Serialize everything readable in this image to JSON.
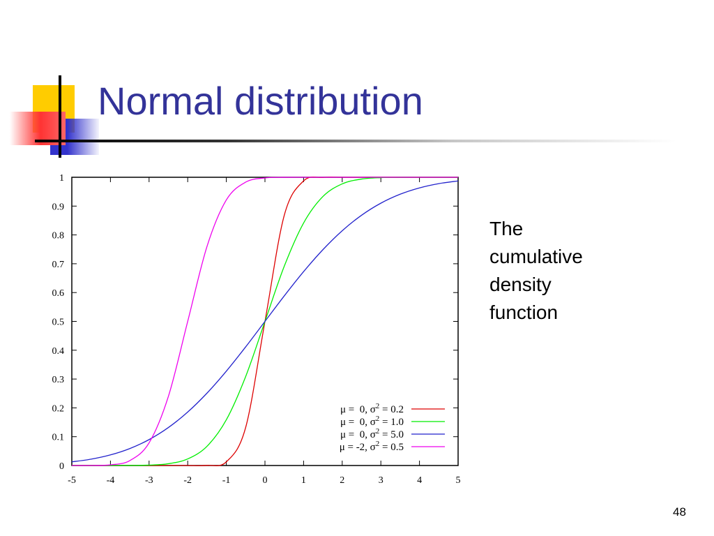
{
  "slide": {
    "title": "Normal distribution",
    "side_text": [
      "The",
      "cumulative",
      "density",
      "function"
    ],
    "page_number": "48"
  },
  "chart_data": {
    "type": "line",
    "title": "",
    "xlabel": "",
    "ylabel": "",
    "xlim": [
      -5,
      5
    ],
    "ylim": [
      0,
      1
    ],
    "x_ticks": [
      "-5",
      "-4",
      "-3",
      "-2",
      "-1",
      "0",
      "1",
      "2",
      "3",
      "4",
      "5"
    ],
    "y_ticks": [
      "0",
      "0.1",
      "0.2",
      "0.3",
      "0.4",
      "0.5",
      "0.6",
      "0.7",
      "0.8",
      "0.9",
      "1"
    ],
    "grid": false,
    "legend_position": "bottom-right",
    "x": [
      -5,
      -4.5,
      -4,
      -3.5,
      -3,
      -2.5,
      -2,
      -1.5,
      -1,
      -0.5,
      0,
      0.5,
      1,
      1.5,
      2,
      2.5,
      3,
      3.5,
      4,
      4.5,
      5
    ],
    "series": [
      {
        "name": "μ = 0, σ2 = 0.2",
        "legend_parts": {
          "mu": "0",
          "var": "0.2"
        },
        "color": "#dd0000",
        "values": [
          0,
          0,
          0,
          0,
          0,
          0,
          0,
          0.0004,
          0.0127,
          0.1318,
          0.5,
          0.8682,
          0.9873,
          0.9996,
          1,
          1,
          1,
          1,
          1,
          1,
          1
        ]
      },
      {
        "name": "μ = 0, σ2 = 1.0",
        "legend_parts": {
          "mu": "0",
          "var": "1.0"
        },
        "color": "#00ee00",
        "values": [
          0,
          0,
          0,
          0.0002,
          0.0013,
          0.0062,
          0.0228,
          0.0668,
          0.1587,
          0.3085,
          0.5,
          0.6915,
          0.8413,
          0.9332,
          0.9772,
          0.9938,
          0.9987,
          0.9998,
          1,
          1,
          1
        ]
      },
      {
        "name": "μ = 0, σ2 = 5.0",
        "legend_parts": {
          "mu": "0",
          "var": "5.0"
        },
        "color": "#2222cc",
        "values": [
          0.0127,
          0.022,
          0.0368,
          0.0588,
          0.0899,
          0.1318,
          0.1855,
          0.2512,
          0.3274,
          0.4115,
          0.5,
          0.5885,
          0.6726,
          0.7488,
          0.8145,
          0.8682,
          0.9101,
          0.9412,
          0.9632,
          0.978,
          0.9873
        ]
      },
      {
        "name": "μ = -2, σ2 = 0.5",
        "legend_parts": {
          "mu": "-2",
          "var": "0.5"
        },
        "color": "#ee00ee",
        "values": [
          0,
          0,
          0.0023,
          0.0169,
          0.0786,
          0.2398,
          0.5,
          0.7602,
          0.9214,
          0.9831,
          0.9977,
          0.9998,
          1,
          1,
          1,
          1,
          1,
          1,
          1,
          1,
          1
        ]
      }
    ]
  }
}
